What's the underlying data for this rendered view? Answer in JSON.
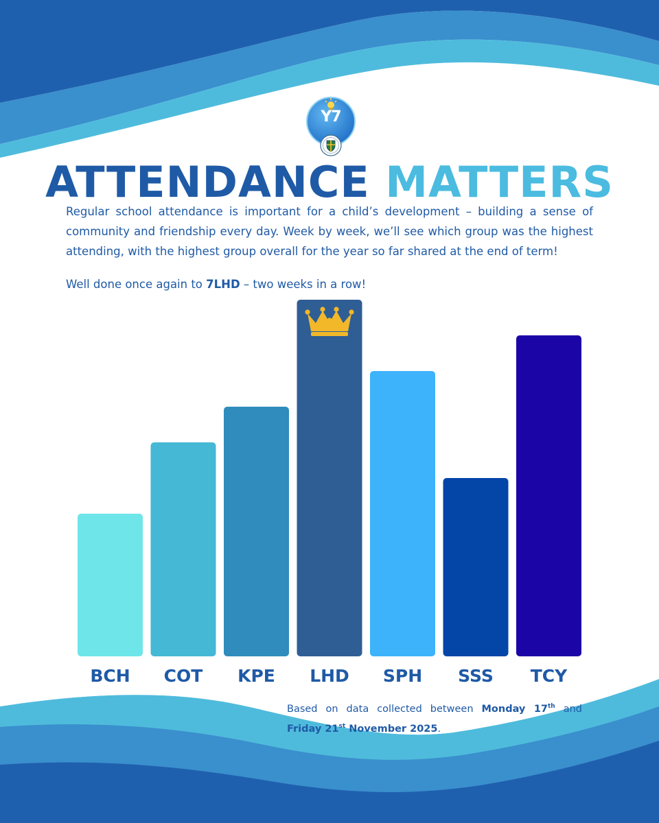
{
  "header": {
    "logo_text": "Y7",
    "title_part1": "ATTENDANCE",
    "title_part2": "MATTERS"
  },
  "intro": {
    "paragraph": "Regular school attendance is important for a child’s development – building a sense of community and friendship every day. Week by week, we’ll see which group was the highest attending, with the highest group overall for the year so far shared at the end of term!",
    "well_done_prefix": "Well done once again to ",
    "well_done_group": "7LHD",
    "well_done_suffix": " – two weeks in a row!"
  },
  "footnote": {
    "prefix": "Based on data collected between ",
    "start_day": "Monday 17",
    "start_suffix": "th",
    "middle": " and ",
    "end_day": "Friday 21",
    "end_suffix": "st",
    "end_rest": " November 2025",
    "period": "."
  },
  "colors": {
    "title_dark": "#1f5aa6",
    "title_light": "#4bbbe0",
    "crown": "#f2b829",
    "wave_outer": "#1f60ae",
    "wave_mid": "#3a8fcd",
    "wave_inner": "#4fbbdc"
  },
  "chart_data": {
    "type": "bar",
    "title": "",
    "xlabel": "",
    "ylabel": "",
    "categories": [
      "BCH",
      "COT",
      "KPE",
      "LHD",
      "SPH",
      "SSS",
      "TCY"
    ],
    "values": [
      20,
      30,
      35,
      50,
      40,
      25,
      45
    ],
    "ylim": [
      0,
      50
    ],
    "bar_colors": [
      "#6ee5e8",
      "#45b8d6",
      "#2f8cbc",
      "#2f5e95",
      "#3db3fb",
      "#0445a8",
      "#1b05a6"
    ],
    "highlight": {
      "category": "LHD",
      "icon": "crown-icon"
    },
    "axes_visible": false,
    "grid": false,
    "legend": "none"
  }
}
